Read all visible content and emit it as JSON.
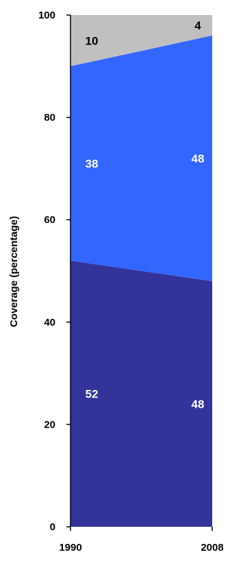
{
  "chart_data": {
    "type": "area",
    "stacked": true,
    "ylabel": "Coverage (percentage)",
    "xlabel": "",
    "title": "",
    "ylim": [
      0,
      100
    ],
    "yticks": [
      0,
      20,
      40,
      60,
      80,
      100
    ],
    "x": [
      "1990",
      "2008"
    ],
    "series": [
      {
        "values": [
          52,
          48
        ],
        "color": "#333399",
        "label_color": "#ffffff"
      },
      {
        "values": [
          38,
          48
        ],
        "color": "#3366ff",
        "label_color": "#ffffff"
      },
      {
        "values": [
          10,
          4
        ],
        "color": "#c0c0c0",
        "label_color": "#000000"
      }
    ],
    "grid": false,
    "legend": "none"
  }
}
